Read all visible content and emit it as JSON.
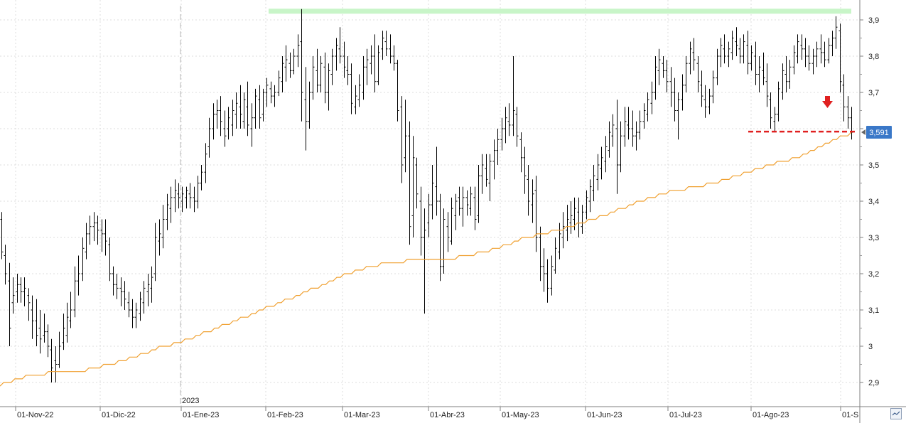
{
  "chart_data": {
    "type": "ohlc",
    "title": "",
    "xlabel": "",
    "ylabel": "",
    "ylim": [
      2.86,
      3.95
    ],
    "y_ticks": [
      2.9,
      3,
      3.1,
      3.2,
      3.3,
      3.4,
      3.5,
      3.6,
      3.7,
      3.8,
      3.9
    ],
    "y_tick_labels": [
      "2,9",
      "3",
      "3,1",
      "3,2",
      "3,3",
      "3,4",
      "3,5",
      "3,6",
      "3,7",
      "3,8",
      "3,9"
    ],
    "x_labels": [
      "01-Nov-22",
      "01-Dic-22",
      "01-Ene-23",
      "01-Feb-23",
      "01-Mar-23",
      "01-Abr-23",
      "01-May-23",
      "01-Jun-23",
      "01-Jul-23",
      "01-Ago-23",
      "01-S"
    ],
    "year_marker": "2023",
    "last_price_label": "3,591",
    "last_price": 3.591,
    "resistance_level": 3.925,
    "support_level": 3.592,
    "colors": {
      "bars": "#000000",
      "moving_average": "#f0a030",
      "resistance": "#c8f5c8",
      "support": "#e02020",
      "price_tag": "#3a78c8",
      "arrow": "#e02020"
    },
    "grid": true,
    "bars": [
      [
        3.35,
        3.37,
        3.24,
        3.26
      ],
      [
        3.25,
        3.28,
        3.17,
        3.2
      ],
      [
        3.18,
        3.23,
        3.0,
        3.05
      ],
      [
        3.12,
        3.19,
        3.09,
        3.14
      ],
      [
        3.15,
        3.2,
        3.12,
        3.17
      ],
      [
        3.17,
        3.19,
        3.12,
        3.15
      ],
      [
        3.15,
        3.19,
        3.11,
        3.16
      ],
      [
        3.14,
        3.16,
        3.07,
        3.12
      ],
      [
        3.1,
        3.14,
        3.02,
        3.07
      ],
      [
        3.07,
        3.13,
        3.0,
        3.03
      ],
      [
        3.05,
        3.1,
        2.98,
        3.02
      ],
      [
        3.03,
        3.09,
        3.01,
        3.04
      ],
      [
        3.04,
        3.06,
        2.97,
        3.0
      ],
      [
        2.99,
        3.02,
        2.9,
        2.94
      ],
      [
        2.96,
        3.0,
        2.9,
        2.95
      ],
      [
        2.95,
        3.04,
        2.94,
        3.0
      ],
      [
        3.01,
        3.09,
        2.99,
        3.05
      ],
      [
        3.03,
        3.12,
        3.01,
        3.08
      ],
      [
        3.07,
        3.15,
        3.05,
        3.1
      ],
      [
        3.1,
        3.22,
        3.08,
        3.18
      ],
      [
        3.18,
        3.25,
        3.14,
        3.2
      ],
      [
        3.2,
        3.3,
        3.18,
        3.27
      ],
      [
        3.26,
        3.34,
        3.24,
        3.31
      ],
      [
        3.31,
        3.36,
        3.28,
        3.33
      ],
      [
        3.33,
        3.37,
        3.29,
        3.34
      ],
      [
        3.34,
        3.36,
        3.28,
        3.32
      ],
      [
        3.32,
        3.35,
        3.26,
        3.31
      ],
      [
        3.31,
        3.35,
        3.25,
        3.29
      ],
      [
        3.28,
        3.3,
        3.18,
        3.2
      ],
      [
        3.2,
        3.22,
        3.14,
        3.17
      ],
      [
        3.17,
        3.2,
        3.13,
        3.16
      ],
      [
        3.16,
        3.19,
        3.11,
        3.15
      ],
      [
        3.15,
        3.18,
        3.1,
        3.13
      ],
      [
        3.12,
        3.15,
        3.08,
        3.1
      ],
      [
        3.1,
        3.13,
        3.05,
        3.08
      ],
      [
        3.08,
        3.12,
        3.05,
        3.1
      ],
      [
        3.09,
        3.15,
        3.07,
        3.13
      ],
      [
        3.12,
        3.18,
        3.09,
        3.16
      ],
      [
        3.15,
        3.2,
        3.11,
        3.17
      ],
      [
        3.16,
        3.22,
        3.12,
        3.19
      ],
      [
        3.2,
        3.34,
        3.18,
        3.3
      ],
      [
        3.29,
        3.35,
        3.25,
        3.31
      ],
      [
        3.3,
        3.39,
        3.27,
        3.35
      ],
      [
        3.35,
        3.42,
        3.32,
        3.39
      ],
      [
        3.38,
        3.44,
        3.34,
        3.41
      ],
      [
        3.41,
        3.46,
        3.37,
        3.43
      ],
      [
        3.42,
        3.45,
        3.38,
        3.41
      ],
      [
        3.4,
        3.44,
        3.37,
        3.42
      ],
      [
        3.41,
        3.44,
        3.38,
        3.43
      ],
      [
        3.42,
        3.45,
        3.38,
        3.41
      ],
      [
        3.41,
        3.44,
        3.37,
        3.4
      ],
      [
        3.4,
        3.47,
        3.38,
        3.45
      ],
      [
        3.45,
        3.5,
        3.43,
        3.48
      ],
      [
        3.48,
        3.56,
        3.45,
        3.53
      ],
      [
        3.55,
        3.63,
        3.52,
        3.6
      ],
      [
        3.6,
        3.67,
        3.57,
        3.64
      ],
      [
        3.64,
        3.68,
        3.6,
        3.65
      ],
      [
        3.65,
        3.69,
        3.58,
        3.62
      ],
      [
        3.6,
        3.65,
        3.55,
        3.58
      ],
      [
        3.6,
        3.66,
        3.57,
        3.63
      ],
      [
        3.61,
        3.68,
        3.58,
        3.65
      ],
      [
        3.64,
        3.7,
        3.6,
        3.67
      ],
      [
        3.66,
        3.72,
        3.6,
        3.64
      ],
      [
        3.62,
        3.7,
        3.6,
        3.68
      ],
      [
        3.66,
        3.73,
        3.58,
        3.61
      ],
      [
        3.6,
        3.67,
        3.55,
        3.63
      ],
      [
        3.63,
        3.71,
        3.6,
        3.69
      ],
      [
        3.68,
        3.72,
        3.6,
        3.63
      ],
      [
        3.64,
        3.71,
        3.62,
        3.7
      ],
      [
        3.7,
        3.74,
        3.66,
        3.72
      ],
      [
        3.71,
        3.73,
        3.67,
        3.69
      ],
      [
        3.69,
        3.72,
        3.66,
        3.7
      ],
      [
        3.7,
        3.76,
        3.69,
        3.74
      ],
      [
        3.73,
        3.8,
        3.7,
        3.78
      ],
      [
        3.77,
        3.83,
        3.73,
        3.79
      ],
      [
        3.78,
        3.81,
        3.74,
        3.76
      ],
      [
        3.76,
        3.82,
        3.75,
        3.8
      ],
      [
        3.8,
        3.86,
        3.77,
        3.83
      ],
      [
        3.84,
        3.93,
        3.62,
        3.7
      ],
      [
        3.68,
        3.77,
        3.54,
        3.62
      ],
      [
        3.62,
        3.73,
        3.6,
        3.7
      ],
      [
        3.7,
        3.8,
        3.68,
        3.77
      ],
      [
        3.76,
        3.82,
        3.7,
        3.72
      ],
      [
        3.72,
        3.8,
        3.7,
        3.78
      ],
      [
        3.77,
        3.81,
        3.67,
        3.7
      ],
      [
        3.7,
        3.78,
        3.65,
        3.76
      ],
      [
        3.75,
        3.82,
        3.72,
        3.8
      ],
      [
        3.8,
        3.85,
        3.76,
        3.83
      ],
      [
        3.82,
        3.88,
        3.78,
        3.8
      ],
      [
        3.8,
        3.84,
        3.74,
        3.77
      ],
      [
        3.76,
        3.8,
        3.72,
        3.75
      ],
      [
        3.75,
        3.78,
        3.64,
        3.67
      ],
      [
        3.66,
        3.72,
        3.64,
        3.69
      ],
      [
        3.68,
        3.75,
        3.66,
        3.72
      ],
      [
        3.7,
        3.8,
        3.68,
        3.77
      ],
      [
        3.77,
        3.82,
        3.72,
        3.79
      ],
      [
        3.78,
        3.83,
        3.75,
        3.8
      ],
      [
        3.8,
        3.86,
        3.7,
        3.73
      ],
      [
        3.73,
        3.83,
        3.72,
        3.81
      ],
      [
        3.82,
        3.87,
        3.79,
        3.85
      ],
      [
        3.84,
        3.87,
        3.8,
        3.82
      ],
      [
        3.82,
        3.86,
        3.78,
        3.8
      ],
      [
        3.8,
        3.83,
        3.76,
        3.78
      ],
      [
        3.78,
        3.79,
        3.62,
        3.65
      ],
      [
        3.66,
        3.69,
        3.45,
        3.5
      ],
      [
        3.52,
        3.68,
        3.48,
        3.58
      ],
      [
        3.58,
        3.62,
        3.28,
        3.33
      ],
      [
        3.36,
        3.58,
        3.3,
        3.52
      ],
      [
        3.5,
        3.52,
        3.38,
        3.42
      ],
      [
        3.4,
        3.44,
        3.25,
        3.3
      ],
      [
        3.3,
        3.38,
        3.09,
        3.32
      ],
      [
        3.34,
        3.42,
        3.3,
        3.39
      ],
      [
        3.39,
        3.5,
        3.35,
        3.45
      ],
      [
        3.44,
        3.55,
        3.36,
        3.4
      ],
      [
        3.4,
        3.42,
        3.18,
        3.22
      ],
      [
        3.22,
        3.38,
        3.2,
        3.35
      ],
      [
        3.33,
        3.37,
        3.26,
        3.3
      ],
      [
        3.29,
        3.41,
        3.28,
        3.38
      ],
      [
        3.36,
        3.42,
        3.32,
        3.4
      ],
      [
        3.41,
        3.44,
        3.36,
        3.38
      ],
      [
        3.38,
        3.44,
        3.33,
        3.41
      ],
      [
        3.41,
        3.43,
        3.36,
        3.39
      ],
      [
        3.38,
        3.44,
        3.36,
        3.42
      ],
      [
        3.41,
        3.44,
        3.32,
        3.35
      ],
      [
        3.36,
        3.5,
        3.34,
        3.47
      ],
      [
        3.47,
        3.53,
        3.42,
        3.5
      ],
      [
        3.49,
        3.53,
        3.44,
        3.46
      ],
      [
        3.45,
        3.53,
        3.4,
        3.51
      ],
      [
        3.51,
        3.57,
        3.46,
        3.54
      ],
      [
        3.54,
        3.6,
        3.5,
        3.57
      ],
      [
        3.57,
        3.63,
        3.54,
        3.6
      ],
      [
        3.6,
        3.66,
        3.56,
        3.63
      ],
      [
        3.62,
        3.67,
        3.58,
        3.61
      ],
      [
        3.61,
        3.8,
        3.58,
        3.65
      ],
      [
        3.64,
        3.66,
        3.55,
        3.58
      ],
      [
        3.57,
        3.59,
        3.48,
        3.52
      ],
      [
        3.52,
        3.55,
        3.42,
        3.47
      ],
      [
        3.46,
        3.5,
        3.36,
        3.4
      ],
      [
        3.39,
        3.46,
        3.34,
        3.42
      ],
      [
        3.43,
        3.47,
        3.26,
        3.3
      ],
      [
        3.3,
        3.33,
        3.18,
        3.22
      ],
      [
        3.22,
        3.27,
        3.15,
        3.2
      ],
      [
        3.2,
        3.24,
        3.12,
        3.16
      ],
      [
        3.16,
        3.25,
        3.14,
        3.22
      ],
      [
        3.21,
        3.3,
        3.2,
        3.27
      ],
      [
        3.26,
        3.34,
        3.24,
        3.31
      ],
      [
        3.3,
        3.37,
        3.27,
        3.33
      ],
      [
        3.32,
        3.39,
        3.29,
        3.35
      ],
      [
        3.34,
        3.4,
        3.31,
        3.36
      ],
      [
        3.35,
        3.41,
        3.32,
        3.38
      ],
      [
        3.37,
        3.41,
        3.3,
        3.34
      ],
      [
        3.33,
        3.39,
        3.31,
        3.37
      ],
      [
        3.37,
        3.43,
        3.35,
        3.41
      ],
      [
        3.4,
        3.46,
        3.37,
        3.44
      ],
      [
        3.43,
        3.5,
        3.4,
        3.47
      ],
      [
        3.46,
        3.53,
        3.43,
        3.5
      ],
      [
        3.49,
        3.55,
        3.46,
        3.52
      ],
      [
        3.51,
        3.58,
        3.48,
        3.55
      ],
      [
        3.54,
        3.62,
        3.52,
        3.59
      ],
      [
        3.58,
        3.64,
        3.55,
        3.61
      ],
      [
        3.6,
        3.68,
        3.42,
        3.5
      ],
      [
        3.5,
        3.62,
        3.48,
        3.58
      ],
      [
        3.58,
        3.66,
        3.55,
        3.62
      ],
      [
        3.61,
        3.66,
        3.57,
        3.6
      ],
      [
        3.6,
        3.65,
        3.55,
        3.58
      ],
      [
        3.58,
        3.62,
        3.54,
        3.59
      ],
      [
        3.59,
        3.65,
        3.57,
        3.62
      ],
      [
        3.62,
        3.67,
        3.6,
        3.65
      ],
      [
        3.64,
        3.7,
        3.62,
        3.68
      ],
      [
        3.67,
        3.73,
        3.64,
        3.7
      ],
      [
        3.7,
        3.8,
        3.68,
        3.77
      ],
      [
        3.76,
        3.82,
        3.72,
        3.79
      ],
      [
        3.78,
        3.8,
        3.74,
        3.76
      ],
      [
        3.76,
        3.79,
        3.7,
        3.73
      ],
      [
        3.73,
        3.77,
        3.66,
        3.7
      ],
      [
        3.7,
        3.74,
        3.62,
        3.65
      ],
      [
        3.65,
        3.7,
        3.57,
        3.68
      ],
      [
        3.68,
        3.75,
        3.65,
        3.72
      ],
      [
        3.72,
        3.8,
        3.7,
        3.78
      ],
      [
        3.78,
        3.84,
        3.75,
        3.82
      ],
      [
        3.81,
        3.85,
        3.76,
        3.79
      ],
      [
        3.78,
        3.8,
        3.7,
        3.73
      ],
      [
        3.72,
        3.76,
        3.66,
        3.69
      ],
      [
        3.68,
        3.72,
        3.63,
        3.66
      ],
      [
        3.66,
        3.71,
        3.64,
        3.69
      ],
      [
        3.69,
        3.76,
        3.67,
        3.74
      ],
      [
        3.74,
        3.82,
        3.72,
        3.8
      ],
      [
        3.8,
        3.85,
        3.77,
        3.83
      ],
      [
        3.82,
        3.86,
        3.78,
        3.8
      ],
      [
        3.8,
        3.84,
        3.77,
        3.82
      ],
      [
        3.81,
        3.87,
        3.79,
        3.85
      ],
      [
        3.84,
        3.88,
        3.8,
        3.83
      ],
      [
        3.82,
        3.85,
        3.78,
        3.8
      ],
      [
        3.8,
        3.86,
        3.78,
        3.84
      ],
      [
        3.83,
        3.87,
        3.75,
        3.78
      ],
      [
        3.78,
        3.83,
        3.76,
        3.81
      ],
      [
        3.8,
        3.84,
        3.72,
        3.75
      ],
      [
        3.75,
        3.8,
        3.7,
        3.77
      ],
      [
        3.76,
        3.81,
        3.72,
        3.74
      ],
      [
        3.73,
        3.78,
        3.66,
        3.69
      ],
      [
        3.68,
        3.7,
        3.6,
        3.63
      ],
      [
        3.62,
        3.66,
        3.59,
        3.64
      ],
      [
        3.64,
        3.73,
        3.62,
        3.71
      ],
      [
        3.7,
        3.78,
        3.68,
        3.76
      ],
      [
        3.75,
        3.8,
        3.7,
        3.73
      ],
      [
        3.73,
        3.79,
        3.71,
        3.77
      ],
      [
        3.77,
        3.83,
        3.75,
        3.81
      ],
      [
        3.8,
        3.86,
        3.78,
        3.84
      ],
      [
        3.83,
        3.86,
        3.79,
        3.82
      ],
      [
        3.82,
        3.85,
        3.77,
        3.8
      ],
      [
        3.8,
        3.83,
        3.76,
        3.78
      ],
      [
        3.78,
        3.82,
        3.75,
        3.8
      ],
      [
        3.8,
        3.84,
        3.77,
        3.82
      ],
      [
        3.82,
        3.86,
        3.78,
        3.81
      ],
      [
        3.81,
        3.84,
        3.77,
        3.79
      ],
      [
        3.79,
        3.85,
        3.78,
        3.83
      ],
      [
        3.83,
        3.87,
        3.8,
        3.85
      ],
      [
        3.85,
        3.91,
        3.82,
        3.88
      ],
      [
        3.87,
        3.89,
        3.7,
        3.73
      ],
      [
        3.72,
        3.75,
        3.62,
        3.66
      ],
      [
        3.66,
        3.69,
        3.6,
        3.63
      ],
      [
        3.63,
        3.66,
        3.57,
        3.59
      ]
    ],
    "moving_average": [
      2.89,
      2.9,
      2.9,
      2.9,
      2.91,
      2.91,
      2.91,
      2.92,
      2.92,
      2.92,
      2.92,
      2.92,
      2.92,
      2.93,
      2.93,
      2.93,
      2.93,
      2.93,
      2.93,
      2.93,
      2.93,
      2.93,
      2.93,
      2.93,
      2.94,
      2.94,
      2.94,
      2.94,
      2.95,
      2.95,
      2.95,
      2.95,
      2.96,
      2.96,
      2.96,
      2.97,
      2.97,
      2.97,
      2.98,
      2.98,
      2.98,
      2.99,
      2.99,
      3.0,
      3.0,
      3.0,
      3.0,
      3.01,
      3.01,
      3.01,
      3.02,
      3.02,
      3.02,
      3.03,
      3.03,
      3.04,
      3.04,
      3.04,
      3.05,
      3.05,
      3.06,
      3.06,
      3.06,
      3.07,
      3.07,
      3.08,
      3.08,
      3.08,
      3.09,
      3.09,
      3.1,
      3.1,
      3.11,
      3.11,
      3.11,
      3.12,
      3.12,
      3.13,
      3.13,
      3.13,
      3.14,
      3.14,
      3.15,
      3.15,
      3.16,
      3.16,
      3.16,
      3.17,
      3.17,
      3.18,
      3.18,
      3.19,
      3.19,
      3.2,
      3.2,
      3.2,
      3.21,
      3.21,
      3.21,
      3.22,
      3.22,
      3.22,
      3.22,
      3.23,
      3.23,
      3.23,
      3.23,
      3.23,
      3.23,
      3.23,
      3.24,
      3.24,
      3.24,
      3.24,
      3.24,
      3.24,
      3.24,
      3.24,
      3.24,
      3.24,
      3.24,
      3.24,
      3.24,
      3.24,
      3.25,
      3.25,
      3.25,
      3.25,
      3.25,
      3.26,
      3.26,
      3.26,
      3.26,
      3.27,
      3.27,
      3.27,
      3.28,
      3.28,
      3.28,
      3.29,
      3.29,
      3.3,
      3.3,
      3.3,
      3.3,
      3.31,
      3.31,
      3.31,
      3.31,
      3.32,
      3.32,
      3.32,
      3.32,
      3.33,
      3.33,
      3.33,
      3.34,
      3.34,
      3.34,
      3.35,
      3.35,
      3.35,
      3.36,
      3.36,
      3.36,
      3.37,
      3.37,
      3.38,
      3.38,
      3.38,
      3.39,
      3.39,
      3.4,
      3.4,
      3.4,
      3.41,
      3.41,
      3.41,
      3.42,
      3.42,
      3.42,
      3.43,
      3.43,
      3.43,
      3.43,
      3.43,
      3.44,
      3.44,
      3.44,
      3.44,
      3.44,
      3.45,
      3.45,
      3.45,
      3.45,
      3.46,
      3.46,
      3.46,
      3.47,
      3.47,
      3.47,
      3.48,
      3.48,
      3.48,
      3.49,
      3.49,
      3.49,
      3.5,
      3.5,
      3.5,
      3.51,
      3.51,
      3.51,
      3.51,
      3.52,
      3.52,
      3.52,
      3.53,
      3.53,
      3.54,
      3.54,
      3.55,
      3.55,
      3.56,
      3.56,
      3.57,
      3.57,
      3.58,
      3.58,
      3.58,
      3.59
    ]
  }
}
